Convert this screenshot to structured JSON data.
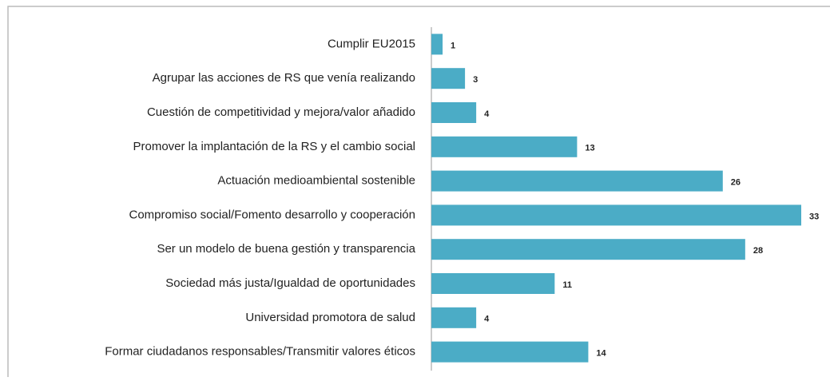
{
  "chart_data": {
    "type": "bar",
    "orientation": "horizontal",
    "color": "#4bacc6",
    "categories": [
      "Cumplir EU2015",
      "Agrupar las acciones de RS que venía realizando",
      "Cuestión de competitividad y mejora/valor añadido",
      "Promover la implantación de la RS y el cambio social",
      "Actuación medioambiental sostenible",
      "Compromiso social/Fomento desarrollo y cooperación",
      "Ser un modelo de buena gestión y transparencia",
      "Sociedad más justa/Igualdad de oportunidades",
      "Universidad promotora de salud",
      "Formar ciudadanos responsables/Transmitir valores éticos"
    ],
    "values": [
      1,
      3,
      4,
      13,
      26,
      33,
      28,
      11,
      4,
      14
    ]
  }
}
